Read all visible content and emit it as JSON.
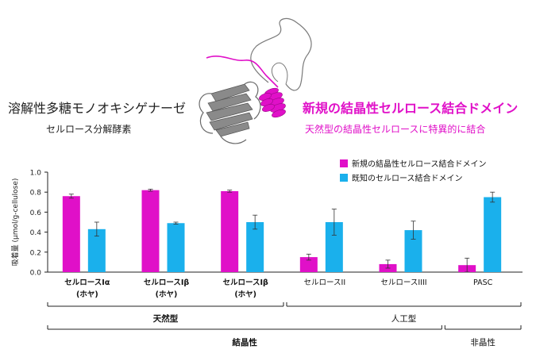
{
  "header": {
    "left_title": "溶解性多糖モノオキシゲナーゼ",
    "left_subtitle": "セルロース分解酵素",
    "right_title": "新規の結晶性セルロース結合ドメイン",
    "right_subtitle": "天然型の結晶性セルロースに特異的に結合"
  },
  "colors": {
    "new_domain": "#e010c8",
    "known_domain": "#1ab0ec",
    "protein_sheet": "#8a8a8a",
    "protein_coil": "#6e6e6e"
  },
  "chart_data": {
    "type": "bar",
    "ylabel": "吸着量 (μmol/g-cellulose)",
    "ylim": [
      0,
      1.0
    ],
    "yticks": [
      "0.0",
      "0.2",
      "0.4",
      "0.6",
      "0.8",
      "1.0"
    ],
    "categories": [
      {
        "main": "セルロースIα",
        "sub": "(ホヤ)"
      },
      {
        "main": "セルロースIβ",
        "sub": "(ホヤ)"
      },
      {
        "main": "セルロースIβ",
        "sub": "(ホヤ)"
      },
      {
        "main": "セルロースII",
        "sub": ""
      },
      {
        "main": "セルロースIIII",
        "sub": ""
      },
      {
        "main": "PASC",
        "sub": ""
      }
    ],
    "series": [
      {
        "name": "新規の結晶性セルロース結合ドメイン",
        "values": [
          0.76,
          0.82,
          0.81,
          0.15,
          0.08,
          0.07
        ],
        "errors": [
          0.02,
          0.01,
          0.01,
          0.03,
          0.04,
          0.07
        ]
      },
      {
        "name": "既知のセルロース結合ドメイン",
        "values": [
          0.43,
          0.49,
          0.5,
          0.5,
          0.42,
          0.75
        ],
        "errors": [
          0.07,
          0.01,
          0.07,
          0.13,
          0.09,
          0.05
        ]
      }
    ],
    "legend_position": "top-right",
    "groups": [
      {
        "label": "天然型"
      },
      {
        "label": "人工型"
      },
      {
        "label": "結晶性"
      },
      {
        "label": "非晶性"
      }
    ]
  }
}
